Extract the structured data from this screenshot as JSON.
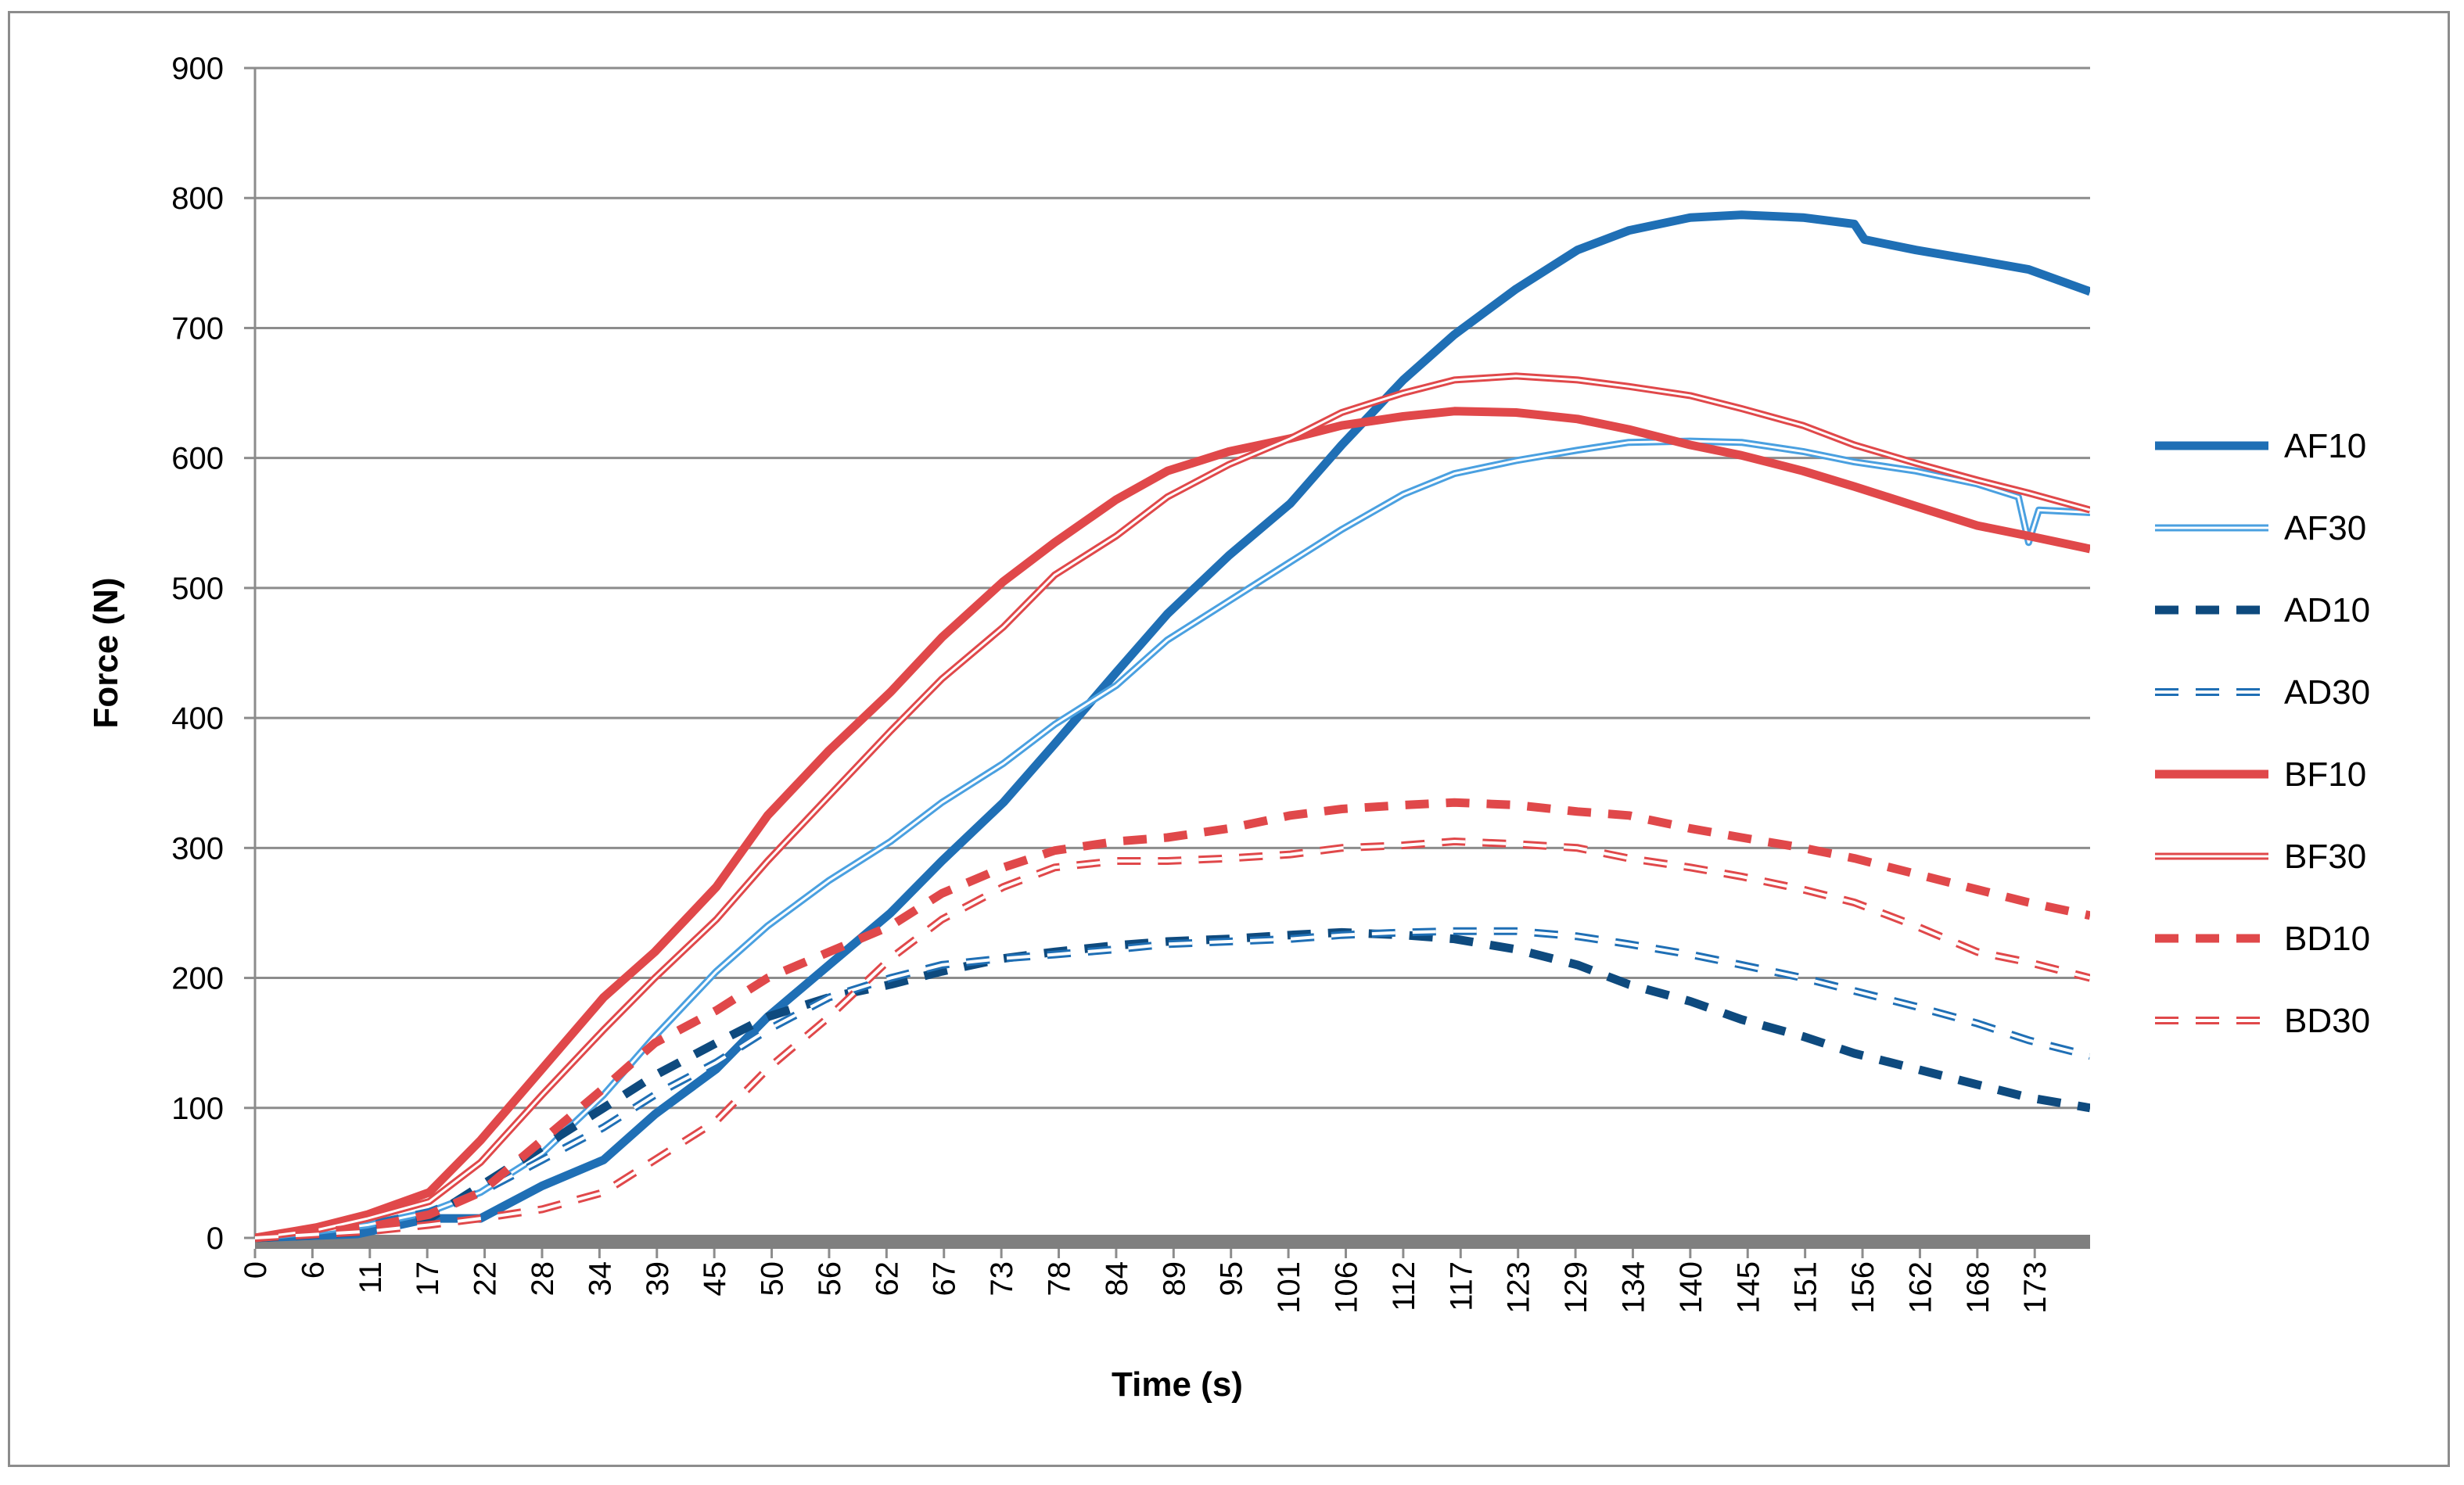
{
  "chart_data": {
    "type": "line",
    "title": "",
    "xlabel": "Time (s)",
    "ylabel": "Force (N)",
    "xlim": [
      0,
      179
    ],
    "ylim": [
      0,
      900
    ],
    "y_ticks": [
      0,
      100,
      200,
      300,
      400,
      500,
      600,
      700,
      800,
      900
    ],
    "x_tick_labels": [
      "0",
      "6",
      "11",
      "17",
      "22",
      "28",
      "34",
      "39",
      "45",
      "50",
      "56",
      "62",
      "67",
      "73",
      "78",
      "84",
      "89",
      "95",
      "101",
      "106",
      "112",
      "117",
      "123",
      "129",
      "134",
      "140",
      "145",
      "151",
      "156",
      "162",
      "168",
      "173"
    ],
    "x_tick_values": [
      0,
      5.6,
      11.2,
      16.8,
      22.4,
      28,
      33.6,
      39.2,
      44.8,
      50.4,
      56,
      61.6,
      67.2,
      72.8,
      78.4,
      84,
      89.6,
      95.2,
      100.8,
      106.4,
      112,
      117.6,
      123.2,
      128.8,
      134.4,
      140,
      145.6,
      151.2,
      156.8,
      162.4,
      168,
      173.6
    ],
    "grid": "horizontal",
    "legend_position": "right",
    "series": [
      {
        "name": "AF10",
        "color": "#1f6fb5",
        "style": "solid-thick",
        "x": [
          0,
          10,
          17,
          22,
          28,
          34,
          39,
          45,
          50,
          56,
          62,
          67,
          73,
          78,
          84,
          89,
          95,
          101,
          106,
          112,
          117,
          123,
          129,
          134,
          140,
          145,
          151,
          156,
          157,
          162,
          168,
          173,
          179
        ],
        "y": [
          0,
          3,
          15,
          15,
          40,
          60,
          95,
          130,
          170,
          210,
          250,
          290,
          335,
          380,
          435,
          480,
          525,
          565,
          610,
          660,
          695,
          730,
          760,
          775,
          785,
          787,
          785,
          780,
          768,
          760,
          752,
          745,
          728
        ]
      },
      {
        "name": "AF30",
        "color": "#4aa0e0",
        "style": "double",
        "x": [
          0,
          6,
          11,
          17,
          22,
          28,
          34,
          39,
          45,
          50,
          56,
          62,
          67,
          73,
          78,
          84,
          89,
          95,
          101,
          106,
          112,
          117,
          123,
          129,
          134,
          140,
          145,
          151,
          156,
          162,
          168,
          172,
          173,
          174,
          179
        ],
        "y": [
          0,
          5,
          10,
          20,
          35,
          65,
          110,
          155,
          205,
          240,
          275,
          305,
          335,
          365,
          395,
          425,
          460,
          490,
          520,
          545,
          572,
          588,
          598,
          606,
          612,
          613,
          612,
          605,
          597,
          590,
          580,
          570,
          535,
          560,
          558
        ]
      },
      {
        "name": "AD10",
        "color": "#0e4a7e",
        "style": "dashed-thick",
        "x": [
          0,
          11,
          17,
          22,
          28,
          34,
          39,
          45,
          50,
          56,
          62,
          67,
          73,
          78,
          84,
          89,
          95,
          101,
          106,
          112,
          117,
          123,
          129,
          134,
          140,
          145,
          151,
          156,
          162,
          168,
          173,
          179
        ],
        "y": [
          0,
          5,
          15,
          40,
          70,
          100,
          125,
          150,
          170,
          185,
          195,
          205,
          215,
          220,
          225,
          228,
          230,
          233,
          235,
          233,
          230,
          222,
          210,
          195,
          182,
          168,
          155,
          142,
          130,
          118,
          108,
          100
        ]
      },
      {
        "name": "AD30",
        "color": "#1f6fb5",
        "style": "dashed-double",
        "x": [
          0,
          11,
          17,
          22,
          28,
          34,
          39,
          45,
          50,
          56,
          62,
          67,
          73,
          78,
          84,
          89,
          95,
          101,
          106,
          112,
          117,
          123,
          129,
          134,
          140,
          145,
          151,
          156,
          162,
          168,
          173,
          179
        ],
        "y": [
          0,
          10,
          20,
          35,
          60,
          85,
          110,
          135,
          160,
          185,
          200,
          210,
          215,
          218,
          222,
          226,
          228,
          230,
          233,
          235,
          236,
          236,
          232,
          226,
          218,
          210,
          200,
          190,
          178,
          165,
          152,
          140
        ]
      },
      {
        "name": "BF10",
        "color": "#e0484a",
        "style": "solid-thick",
        "x": [
          0,
          6,
          11,
          17,
          22,
          28,
          34,
          39,
          45,
          50,
          56,
          62,
          67,
          73,
          78,
          84,
          89,
          95,
          101,
          106,
          112,
          117,
          123,
          129,
          134,
          140,
          145,
          151,
          156,
          162,
          168,
          173,
          179
        ],
        "y": [
          0,
          8,
          18,
          35,
          75,
          130,
          185,
          220,
          270,
          325,
          375,
          420,
          462,
          505,
          535,
          568,
          590,
          605,
          615,
          625,
          632,
          636,
          635,
          630,
          622,
          610,
          602,
          590,
          578,
          563,
          548,
          540,
          530
        ]
      },
      {
        "name": "BF30",
        "color": "#e0484a",
        "style": "double",
        "x": [
          0,
          6,
          11,
          17,
          22,
          28,
          34,
          39,
          45,
          50,
          56,
          62,
          67,
          73,
          78,
          84,
          89,
          95,
          101,
          106,
          112,
          117,
          123,
          129,
          134,
          140,
          145,
          151,
          156,
          162,
          168,
          173,
          179
        ],
        "y": [
          0,
          6,
          15,
          28,
          58,
          110,
          160,
          200,
          245,
          290,
          340,
          390,
          430,
          470,
          510,
          540,
          570,
          595,
          615,
          635,
          650,
          660,
          663,
          660,
          655,
          648,
          638,
          625,
          610,
          596,
          583,
          573,
          560
        ]
      },
      {
        "name": "BD10",
        "color": "#e0484a",
        "style": "dashed-thick",
        "x": [
          0,
          11,
          17,
          22,
          28,
          34,
          39,
          45,
          50,
          56,
          62,
          67,
          73,
          78,
          84,
          89,
          95,
          101,
          106,
          112,
          117,
          123,
          129,
          134,
          140,
          145,
          151,
          156,
          162,
          168,
          173,
          179
        ],
        "y": [
          0,
          8,
          18,
          35,
          75,
          115,
          150,
          175,
          200,
          220,
          240,
          265,
          285,
          298,
          305,
          308,
          315,
          325,
          330,
          333,
          335,
          333,
          328,
          325,
          315,
          308,
          300,
          292,
          280,
          268,
          258,
          248
        ]
      },
      {
        "name": "BD30",
        "color": "#e0484a",
        "style": "dashed-double",
        "x": [
          0,
          11,
          17,
          22,
          28,
          34,
          39,
          45,
          50,
          56,
          62,
          67,
          73,
          78,
          84,
          89,
          95,
          101,
          106,
          112,
          117,
          123,
          129,
          134,
          140,
          145,
          151,
          156,
          162,
          168,
          173,
          179
        ],
        "y": [
          0,
          5,
          10,
          15,
          22,
          35,
          60,
          90,
          130,
          170,
          215,
          245,
          270,
          285,
          290,
          290,
          292,
          295,
          300,
          302,
          305,
          303,
          300,
          292,
          285,
          278,
          268,
          258,
          240,
          220,
          212,
          200
        ]
      }
    ]
  }
}
